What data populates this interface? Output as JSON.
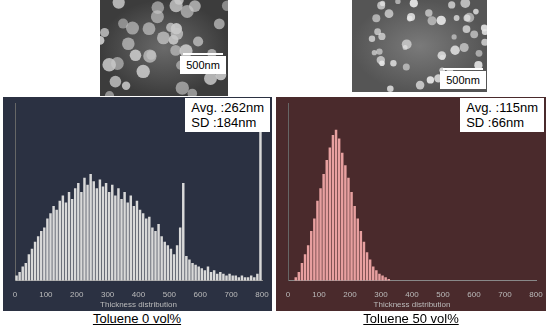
{
  "chart_data": [
    {
      "type": "histogram",
      "caption": "Toluene 0 vol%",
      "scale_bar": "500nm",
      "xlabel": "Thickness distribution",
      "annotations": [
        "Avg. :262nm",
        "SD :184nm"
      ],
      "bins": [
        0,
        10,
        20,
        30,
        40,
        50,
        60,
        70,
        80,
        90,
        100,
        110,
        120,
        130,
        140,
        150,
        160,
        170,
        180,
        190,
        200,
        210,
        220,
        230,
        240,
        250,
        260,
        270,
        280,
        290,
        300,
        310,
        320,
        330,
        340,
        350,
        360,
        370,
        380,
        390,
        400,
        410,
        420,
        430,
        440,
        450,
        460,
        470,
        480,
        490,
        500,
        510,
        520,
        530,
        540,
        550,
        560,
        570,
        580,
        590,
        600,
        610,
        620,
        630,
        640,
        650,
        660,
        670,
        680,
        690,
        700,
        710,
        720,
        730,
        740,
        750,
        760,
        770,
        780,
        790,
        800
      ],
      "counts": [
        3,
        5,
        8,
        10,
        15,
        18,
        22,
        25,
        28,
        30,
        35,
        38,
        42,
        40,
        45,
        48,
        44,
        50,
        46,
        52,
        55,
        50,
        58,
        54,
        60,
        56,
        52,
        57,
        53,
        55,
        50,
        54,
        48,
        52,
        46,
        50,
        44,
        48,
        42,
        45,
        40,
        38,
        35,
        36,
        30,
        28,
        32,
        25,
        22,
        20,
        18,
        15,
        20,
        30,
        55,
        14,
        12,
        10,
        9,
        8,
        7,
        6,
        8,
        5,
        6,
        4,
        5,
        4,
        3,
        4,
        3,
        3,
        2,
        3,
        2,
        2,
        3,
        2,
        4,
        95
      ],
      "color": "#d9d9d9",
      "xlim": [
        0,
        800
      ],
      "xticks": [
        0,
        100,
        200,
        300,
        400,
        500,
        600,
        700,
        800
      ],
      "ylim": [
        0,
        100
      ],
      "tick_labels": "x",
      "grid": false
    },
    {
      "type": "histogram",
      "caption": "Toluene 50 vol%",
      "scale_bar": "500nm",
      "xlabel": "Thickness distribution",
      "annotations": [
        "Avg. :115nm",
        "SD :66nm"
      ],
      "bins": [
        0,
        10,
        20,
        30,
        40,
        50,
        60,
        70,
        80,
        90,
        100,
        110,
        120,
        130,
        140,
        150,
        160,
        170,
        180,
        190,
        200,
        210,
        220,
        230,
        240,
        250,
        260,
        270,
        280,
        290,
        300,
        310,
        320,
        330,
        340,
        350,
        360,
        370,
        380,
        390,
        400,
        410,
        420,
        430,
        440,
        450,
        460,
        470,
        480,
        490,
        500,
        510,
        520,
        530,
        540,
        550,
        560,
        570,
        580,
        590,
        600,
        610,
        620,
        630,
        640,
        650,
        660,
        670,
        680,
        690,
        700,
        710,
        720,
        730,
        740,
        750,
        760,
        770,
        780,
        790,
        800
      ],
      "counts": [
        0,
        0,
        2,
        5,
        10,
        15,
        20,
        28,
        35,
        45,
        52,
        60,
        68,
        75,
        82,
        85,
        80,
        72,
        65,
        58,
        50,
        42,
        35,
        28,
        22,
        16,
        12,
        8,
        6,
        4,
        3,
        2,
        1,
        0,
        0,
        0,
        0,
        0,
        0,
        0,
        0,
        0,
        0,
        0,
        0,
        0,
        0,
        0,
        0,
        0,
        0,
        0,
        0,
        0,
        0,
        0,
        0,
        0,
        0,
        0,
        0,
        0,
        0,
        0,
        0,
        0,
        0,
        0,
        0,
        0,
        0,
        0,
        0,
        0,
        0,
        0,
        0,
        0,
        0,
        0
      ],
      "color": "#e8a0a0",
      "xlim": [
        0,
        800
      ],
      "xticks": [
        0,
        100,
        200,
        300,
        400,
        500,
        600,
        700,
        800
      ],
      "ylim": [
        0,
        100
      ],
      "tick_labels": "x",
      "grid": false
    }
  ]
}
